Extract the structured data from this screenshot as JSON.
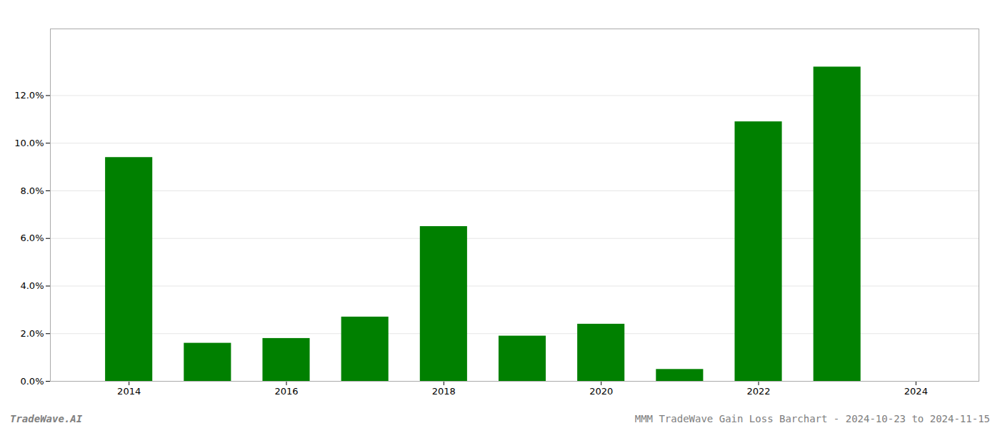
{
  "chart_data": {
    "type": "bar",
    "x": [
      2014,
      2015,
      2016,
      2017,
      2018,
      2019,
      2020,
      2021,
      2022,
      2023
    ],
    "values": [
      0.094,
      0.016,
      0.018,
      0.027,
      0.065,
      0.019,
      0.024,
      0.005,
      0.109,
      0.132
    ],
    "color": "#008000",
    "xlim": [
      2013.0,
      2024.8
    ],
    "xticks": [
      2014,
      2016,
      2018,
      2020,
      2022,
      2024
    ],
    "ylim": [
      0.0,
      0.148
    ],
    "yticks": [
      {
        "value": 0.0,
        "label": "0.0%"
      },
      {
        "value": 0.02,
        "label": "2.0%"
      },
      {
        "value": 0.04,
        "label": "4.0%"
      },
      {
        "value": 0.06,
        "label": "6.0%"
      },
      {
        "value": 0.08,
        "label": "8.0%"
      },
      {
        "value": 0.1,
        "label": "10.0%"
      },
      {
        "value": 0.12,
        "label": "12.0%"
      }
    ],
    "grid": true,
    "annotations": [
      "TradeWave.AI",
      "MMM TradeWave Gain Loss Barchart - 2024-10-23 to 2024-11-15"
    ]
  }
}
